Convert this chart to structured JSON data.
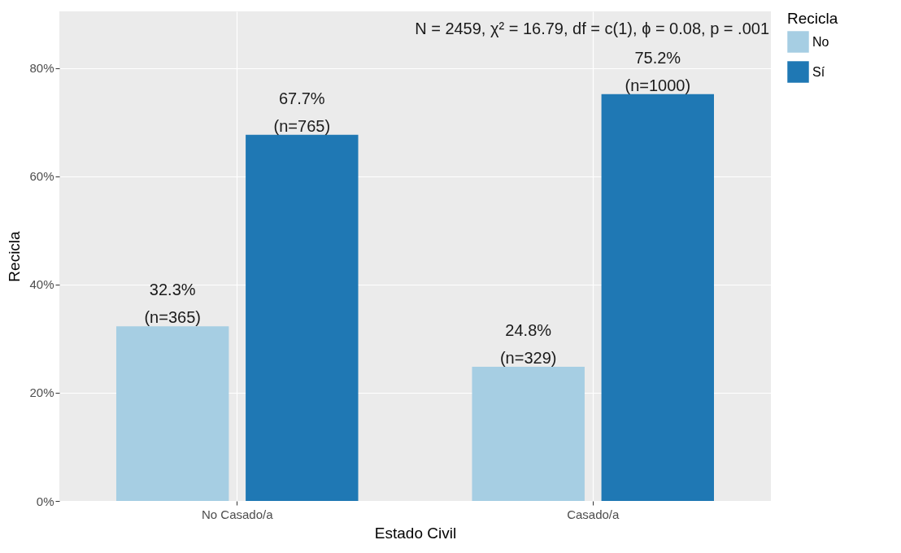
{
  "chart_data": {
    "type": "bar",
    "xlabel": "Estado Civil",
    "ylabel": "Recicla",
    "legend_title": "Recicla",
    "categories": [
      "No Casado/a",
      "Casado/a"
    ],
    "series": [
      {
        "name": "No",
        "color": "#a6cee3",
        "values": [
          32.3,
          24.8
        ],
        "value_labels": [
          "32.3%\n(n=365)",
          "24.8%\n(n=329)"
        ]
      },
      {
        "name": "Sí",
        "color": "#1f78b4",
        "values": [
          67.7,
          75.2
        ],
        "value_labels": [
          "67.7%\n(n=765)",
          "75.2%\n(n=1000)"
        ]
      }
    ],
    "ylim": [
      0,
      90.5
    ],
    "yticks": [
      {
        "value": 0,
        "label": "0%"
      },
      {
        "value": 20,
        "label": "20%"
      },
      {
        "value": 40,
        "label": "40%"
      },
      {
        "value": 60,
        "label": "60%"
      },
      {
        "value": 80,
        "label": "80%"
      }
    ],
    "annotations": [
      "N = 2459,  χ² = 16.79,  df = c(1),  ϕ = 0.08,  p = .001"
    ],
    "grid": true,
    "legend": "right"
  }
}
